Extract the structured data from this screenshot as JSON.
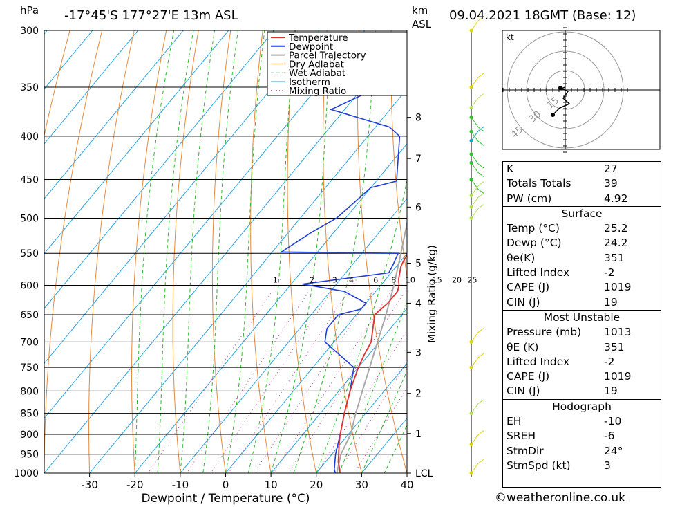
{
  "header": {
    "pressure_unit": "hPa",
    "location": "-17°45'S  177°27'E  13m  ASL",
    "km_label": "km",
    "asl_label": "ASL",
    "datetime": "09.04.2021  18GMT  (Base: 12)"
  },
  "chart_data": {
    "type": "line",
    "title": "-17°45'S  177°27'E  13m  ASL",
    "xlabel": "Dewpoint / Temperature (°C)",
    "ylabel": "hPa",
    "xlim": [
      -40,
      40
    ],
    "pressure_range": [
      1000,
      300
    ],
    "skew_deg_per_log_p": 67,
    "x_ticks": [
      -30,
      -20,
      -10,
      0,
      10,
      20,
      30,
      40
    ],
    "pressure_ticks": [
      300,
      350,
      400,
      450,
      500,
      550,
      600,
      650,
      700,
      750,
      800,
      850,
      900,
      950,
      1000
    ],
    "km_ticks": [
      {
        "label": "8",
        "p": 380
      },
      {
        "label": "7",
        "p": 425
      },
      {
        "label": "6",
        "p": 485
      },
      {
        "label": "5",
        "p": 565
      },
      {
        "label": "4",
        "p": 630
      },
      {
        "label": "3",
        "p": 720
      },
      {
        "label": "2",
        "p": 805
      },
      {
        "label": "1",
        "p": 898
      },
      {
        "label": "LCL",
        "p": 1000
      }
    ],
    "mixing_ratio_label": "Mixing Ratio (g/kg)",
    "mixing_ratio_values": [
      1,
      2,
      3,
      4,
      6,
      8,
      10,
      15,
      20,
      25
    ],
    "legend": [
      "Temperature",
      "Dewpoint",
      "Parcel Trajectory",
      "Dry Adiabat",
      "Wet Adiabat",
      "Isotherm",
      "Mixing Ratio"
    ],
    "colors": {
      "temperature": "#e03030",
      "dewpoint": "#1f3ed8",
      "parcel": "#a8a8a8",
      "dry_adiabat": "#e58a3a",
      "wet_adiabat": "#2bbb2b",
      "isotherm": "#29a4e6",
      "mixing_ratio": "#d63aa6"
    },
    "series": [
      {
        "name": "Temperature",
        "points": [
          [
            1000,
            25.2
          ],
          [
            990,
            24.5
          ],
          [
            970,
            22.8
          ],
          [
            950,
            21.5
          ],
          [
            925,
            19.8
          ],
          [
            900,
            18.2
          ],
          [
            850,
            15.3
          ],
          [
            800,
            12.5
          ],
          [
            750,
            10.0
          ],
          [
            725,
            9.0
          ],
          [
            700,
            8.2
          ],
          [
            650,
            4.0
          ],
          [
            630,
            4.8
          ],
          [
            610,
            4.8
          ],
          [
            600,
            4.0
          ],
          [
            590,
            2.8
          ],
          [
            570,
            1.0
          ],
          [
            560,
            0.5
          ],
          [
            550,
            0.2
          ],
          [
            530,
            -1.5
          ],
          [
            500,
            -4.0
          ],
          [
            450,
            -10.0
          ],
          [
            420,
            -13.0
          ],
          [
            400,
            -16.0
          ],
          [
            380,
            -18.0
          ],
          [
            370,
            -19.0
          ],
          [
            362,
            -20.5
          ]
        ]
      },
      {
        "name": "Dewpoint",
        "points": [
          [
            1000,
            24.2
          ],
          [
            990,
            23.3
          ],
          [
            950,
            20.8
          ],
          [
            900,
            18.2
          ],
          [
            850,
            15.3
          ],
          [
            800,
            12.5
          ],
          [
            750,
            9.0
          ],
          [
            700,
            -2.0
          ],
          [
            675,
            -4.0
          ],
          [
            650,
            -4.0
          ],
          [
            640,
            0.0
          ],
          [
            630,
            0.0
          ],
          [
            610,
            -7.0
          ],
          [
            598,
            -17.5
          ],
          [
            580,
            -0.5
          ],
          [
            568,
            -1.0
          ],
          [
            550,
            -2.0
          ],
          [
            548,
            -28.0
          ],
          [
            520,
            -25.0
          ],
          [
            500,
            -22.0
          ],
          [
            480,
            -21.0
          ],
          [
            460,
            -20.0
          ],
          [
            452,
            -15.5
          ],
          [
            400,
            -23.0
          ],
          [
            390,
            -27.0
          ],
          [
            372,
            -43.0
          ],
          [
            345,
            -35.0
          ],
          [
            300,
            -34.0
          ]
        ]
      },
      {
        "name": "Parcel Trajectory",
        "points": [
          [
            1000,
            24.5
          ],
          [
            950,
            22.0
          ],
          [
            900,
            20.5
          ],
          [
            850,
            17.8
          ],
          [
            800,
            15.2
          ],
          [
            750,
            12.5
          ],
          [
            700,
            9.6
          ],
          [
            650,
            6.5
          ],
          [
            600,
            2.9
          ],
          [
            550,
            -1.4
          ],
          [
            500,
            -6.2
          ],
          [
            450,
            -11.7
          ],
          [
            400,
            -18.5
          ],
          [
            362,
            -24.0
          ]
        ]
      }
    ]
  },
  "hodograph": {
    "unit": "kt",
    "ring_labels": [
      "15",
      "30",
      "45"
    ]
  },
  "indices": {
    "rows": [
      {
        "label": "K",
        "value": "27"
      },
      {
        "label": "Totals Totals",
        "value": "39"
      },
      {
        "label": "PW (cm)",
        "value": "4.92"
      }
    ],
    "surface": {
      "title": "Surface",
      "rows": [
        {
          "label": "Temp (°C)",
          "value": "25.2"
        },
        {
          "label": "Dewp (°C)",
          "value": "24.2"
        },
        {
          "label": "θe(K)",
          "value": "351"
        },
        {
          "label": "Lifted Index",
          "value": "-2"
        },
        {
          "label": "CAPE (J)",
          "value": "1019"
        },
        {
          "label": "CIN (J)",
          "value": "19"
        }
      ]
    },
    "most_unstable": {
      "title": "Most Unstable",
      "rows": [
        {
          "label": "Pressure (mb)",
          "value": "1013"
        },
        {
          "label": "θE (K)",
          "value": "351"
        },
        {
          "label": "Lifted Index",
          "value": "-2"
        },
        {
          "label": "CAPE (J)",
          "value": "1019"
        },
        {
          "label": "CIN (J)",
          "value": "19"
        }
      ]
    },
    "hodograph": {
      "title": "Hodograph",
      "rows": [
        {
          "label": "EH",
          "value": "-10"
        },
        {
          "label": "SREH",
          "value": "-6"
        },
        {
          "label": "StmDir",
          "value": "24°"
        },
        {
          "label": "StmSpd (kt)",
          "value": "3"
        }
      ]
    }
  },
  "credit": "©weatheronline.co.uk"
}
